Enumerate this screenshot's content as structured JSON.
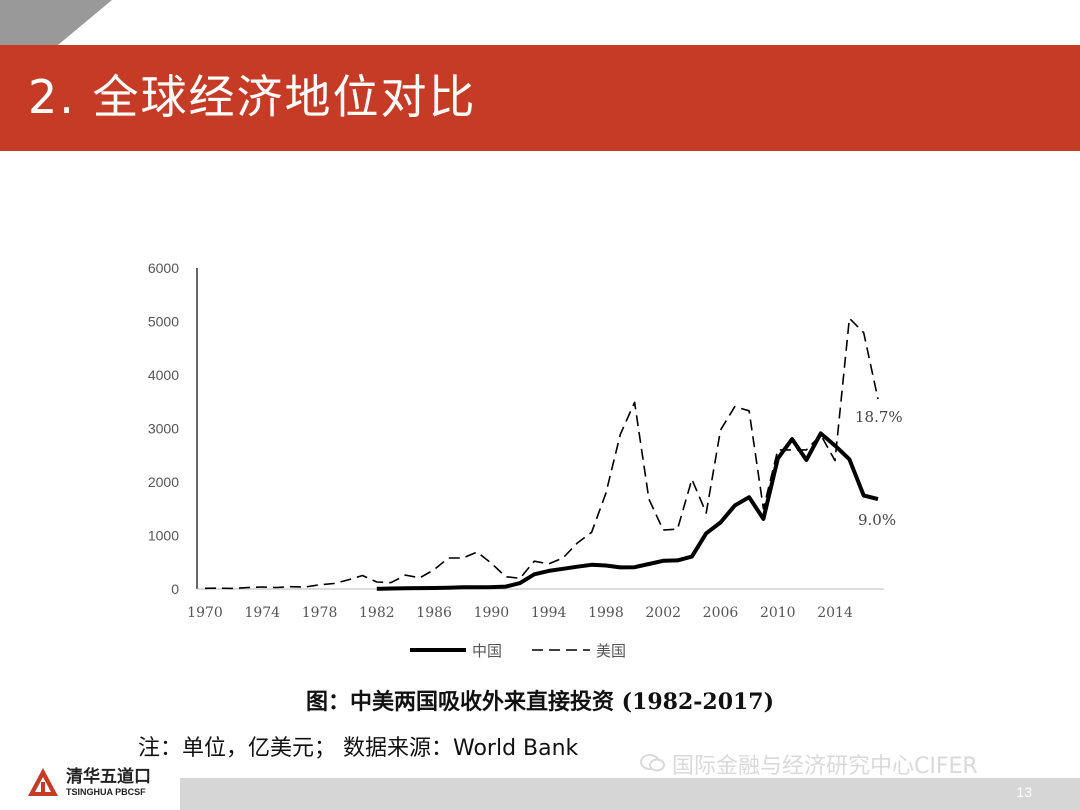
{
  "slide": {
    "title": "2. 全球经济地位对比",
    "caption": "图：中美两国吸收外来直接投资 (1982-2017)",
    "note": "注：单位，亿美元； 数据来源：World Bank",
    "watermark": "国际金融与经济研究中心CIFER",
    "page_number": "13",
    "logo_cn": "清华五道口",
    "logo_en": "TSINGHUA PBCSF",
    "accent_color": "#c53b25"
  },
  "chart_data": {
    "type": "line",
    "x": [
      1970,
      1971,
      1972,
      1973,
      1974,
      1975,
      1976,
      1977,
      1978,
      1979,
      1980,
      1981,
      1982,
      1983,
      1984,
      1985,
      1986,
      1987,
      1988,
      1989,
      1990,
      1991,
      1992,
      1993,
      1994,
      1995,
      1996,
      1997,
      1998,
      1999,
      2000,
      2001,
      2002,
      2003,
      2004,
      2005,
      2006,
      2007,
      2008,
      2009,
      2010,
      2011,
      2012,
      2013,
      2014,
      2015,
      2016,
      2017
    ],
    "x_ticks": [
      1970,
      1974,
      1978,
      1982,
      1986,
      1990,
      1994,
      1998,
      2002,
      2006,
      2010,
      2014
    ],
    "y_ticks": [
      0,
      1000,
      2000,
      3000,
      4000,
      5000,
      6000
    ],
    "ylim": [
      0,
      6000
    ],
    "series": [
      {
        "name": "中国",
        "style": "solid",
        "color": "#000000",
        "values": [
          null,
          null,
          null,
          null,
          null,
          null,
          null,
          null,
          null,
          null,
          null,
          null,
          4,
          9,
          13,
          17,
          19,
          23,
          32,
          34,
          35,
          44,
          111,
          275,
          338,
          378,
          417,
          453,
          440,
          403,
          407,
          468,
          527,
          535,
          606,
          1041,
          1243,
          1561,
          1715,
          1311,
          2437,
          2801,
          2412,
          2909,
          2681,
          2425,
          1747,
          1681
        ]
      },
      {
        "name": "美国",
        "style": "dashed",
        "color": "#000000",
        "values": [
          13,
          15,
          12,
          28,
          38,
          28,
          43,
          38,
          78,
          103,
          170,
          252,
          130,
          120,
          260,
          210,
          360,
          580,
          580,
          690,
          480,
          230,
          200,
          520,
          470,
          580,
          860,
          1060,
          1790,
          2890,
          3490,
          1680,
          1100,
          1120,
          2050,
          1420,
          2970,
          3410,
          3330,
          1500,
          2600,
          2600,
          2600,
          2880,
          2400,
          5060,
          4790,
          3550
        ]
      }
    ],
    "annotations": [
      {
        "text": "18.7%",
        "series": "美国"
      },
      {
        "text": "9.0%",
        "series": "中国"
      }
    ],
    "legend": {
      "position": "bottom",
      "items": [
        "中国",
        "美国"
      ]
    },
    "grid": false
  }
}
